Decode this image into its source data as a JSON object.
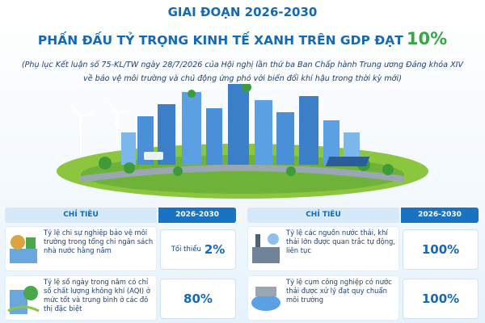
{
  "header": {
    "title": "GIAI ĐOẠN 2026-2030",
    "headline": "PHẤN ĐẤU TỶ TRỌNG KINH TẾ XANH TRÊN GDP ĐẠT",
    "headline_highlight": "10%",
    "subtitle_line1": "(Phụ lục Kết luận số 75-KL/TW ngày 28/7/2026 của Hội nghị lần thứ ba Ban Chấp hành Trung ương Đảng khóa XIV",
    "subtitle_line2": "về bảo vệ môi trường và chủ động ứng phó với biến đổi khí hậu trong thời kỳ mới)"
  },
  "tables": [
    {
      "header": [
        "CHỈ TIÊU",
        "2026-2030"
      ],
      "rows": [
        {
          "label": "Tỷ lệ chi sự nghiệp bảo vệ môi trường trong tổng chi ngân sách nhà nước hằng năm",
          "qualifier": "Tối thiểu",
          "value": "2%"
        },
        {
          "label": "Tỷ lệ số ngày trong năm có chỉ số chất lượng không khí (AQI) ở mức tốt và trung bình ở các đô thị đặc biệt",
          "value": "80%"
        }
      ]
    },
    {
      "header": [
        "CHỈ TIÊU",
        "2026-2030"
      ],
      "rows": [
        {
          "label": "Tỷ lệ các nguồn nước thải, khí thải lớn được quan trắc tự động, liên tục",
          "value": "100%"
        },
        {
          "label": "Tỷ lệ cụm công nghiệp có nước thải được xử lý đạt quy chuẩn môi trường",
          "value": "100%"
        }
      ]
    }
  ]
}
